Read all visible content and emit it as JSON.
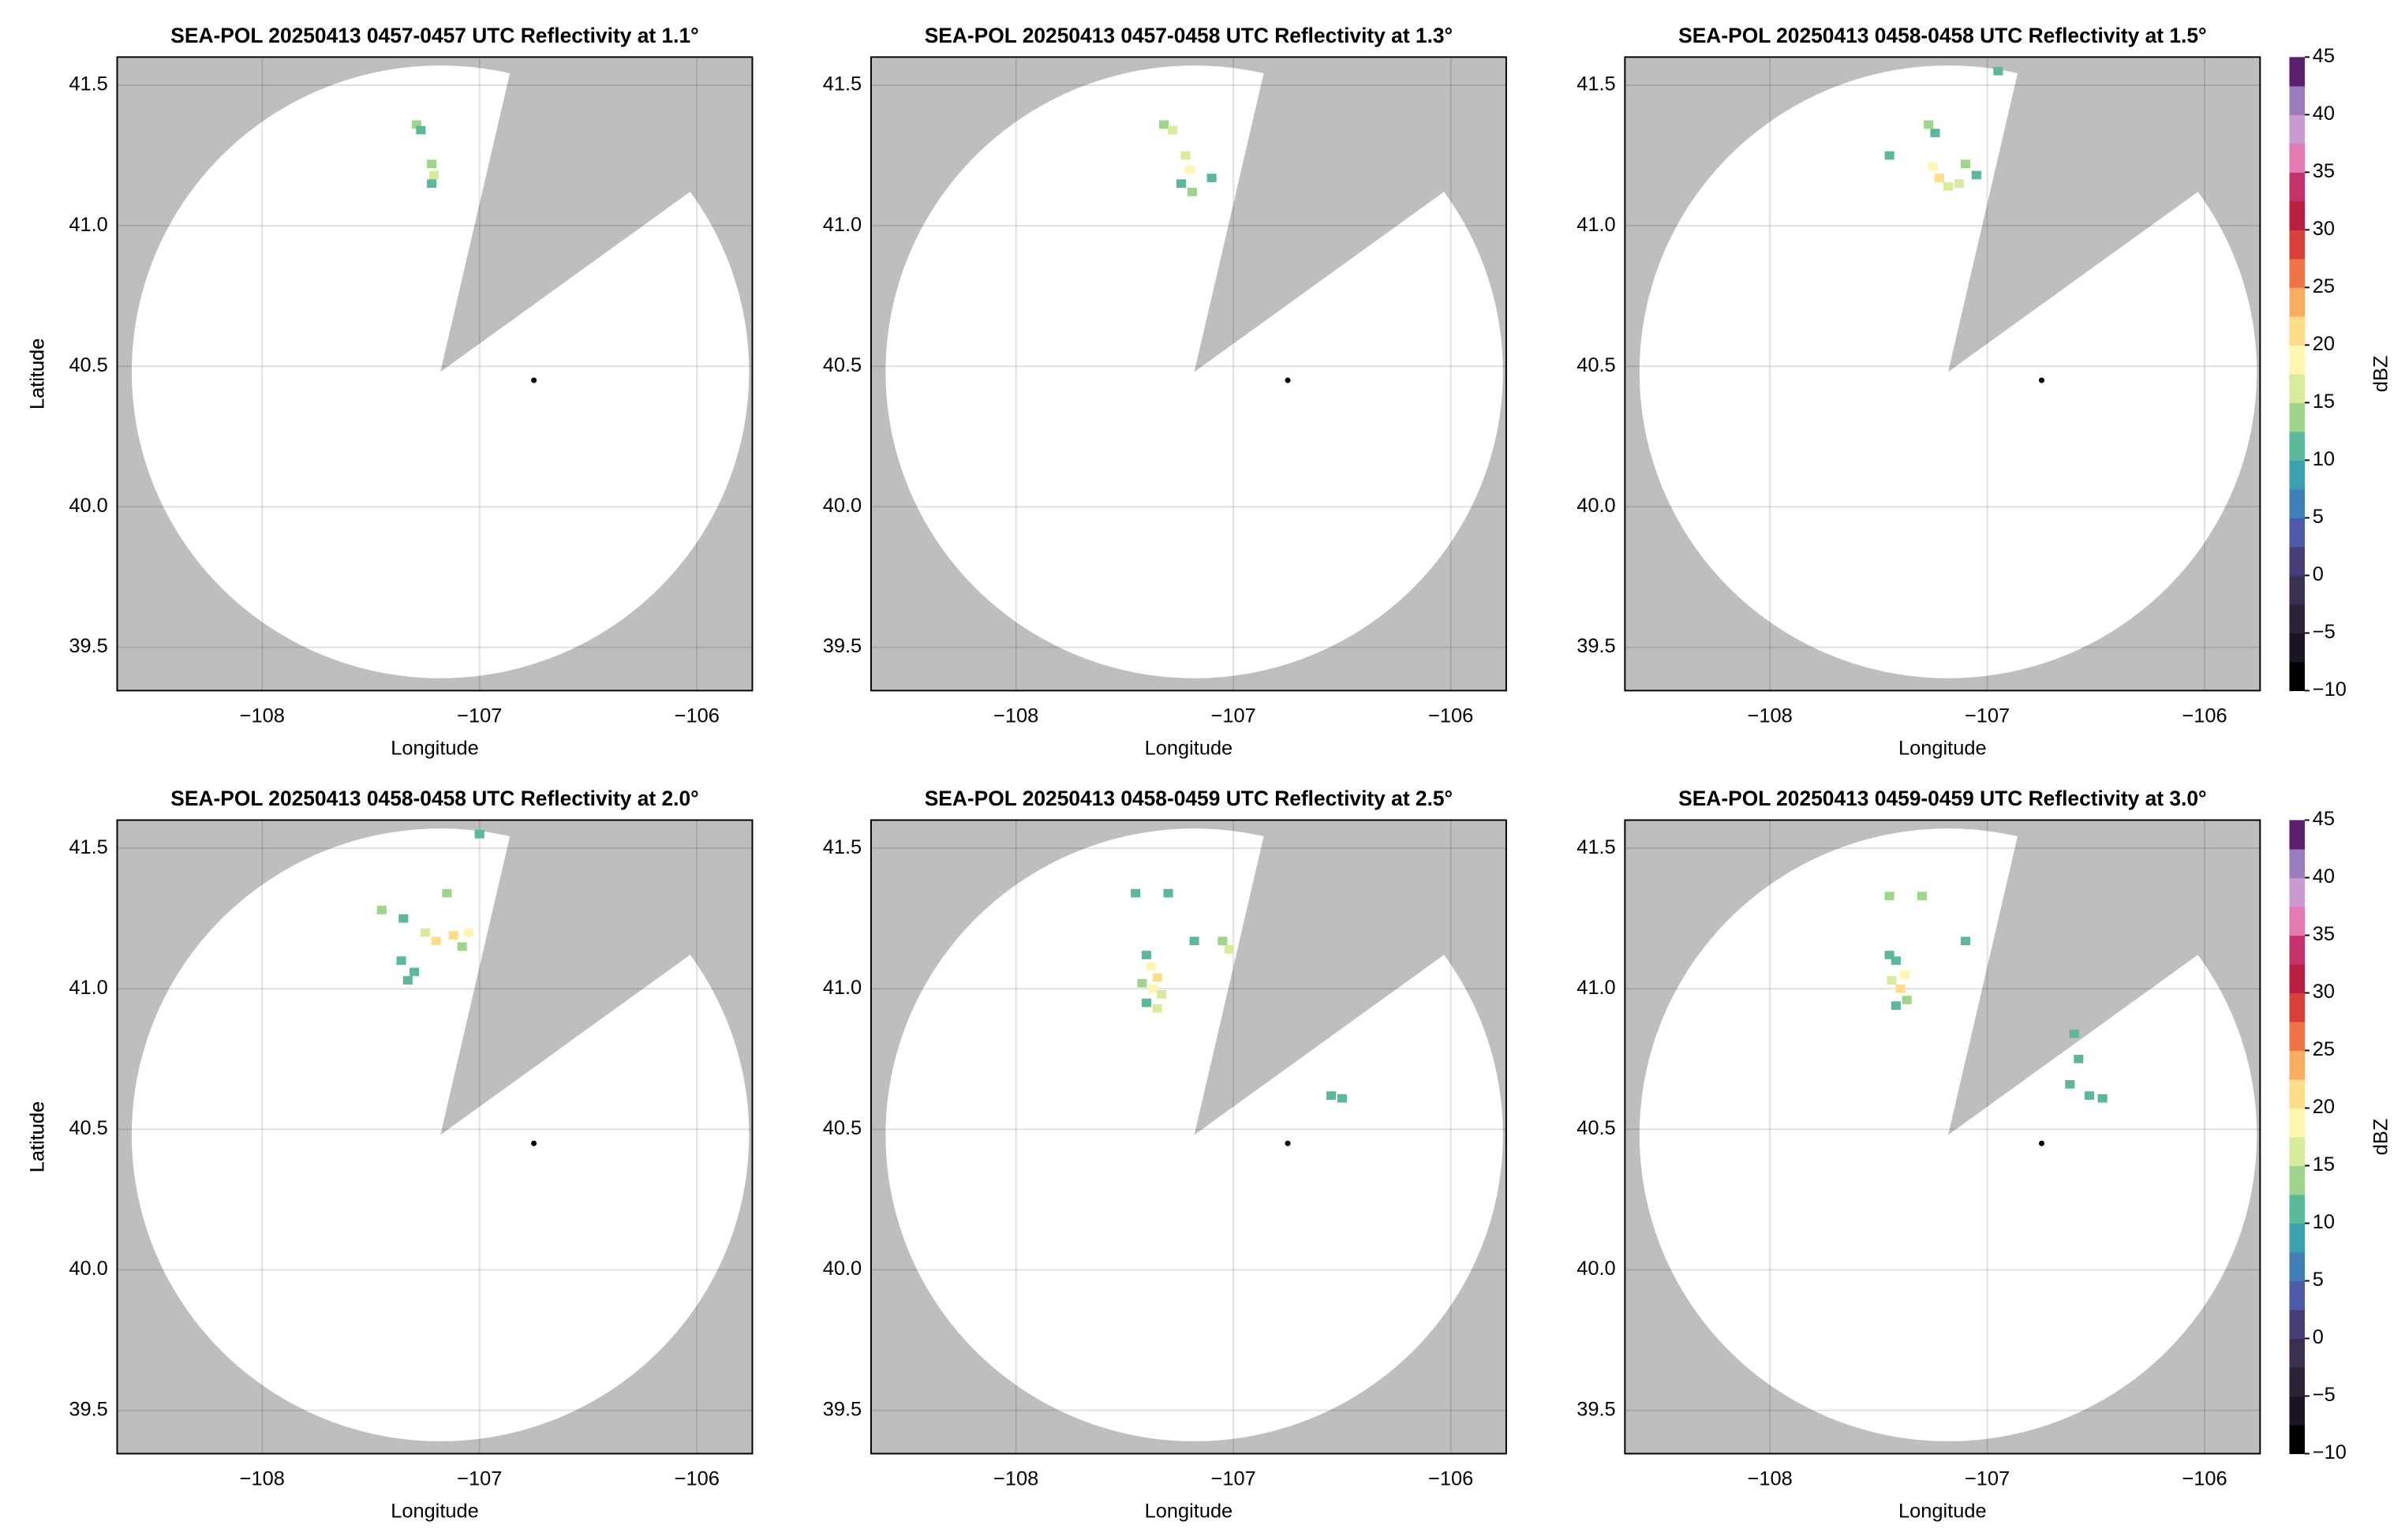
{
  "colormap": {
    "lim": [
      -10,
      45
    ],
    "colors": [
      "#000000",
      "#1a1520",
      "#2a2235",
      "#3a3050",
      "#473d78",
      "#4d5aa8",
      "#3f7fb5",
      "#3a9fae",
      "#5bb89a",
      "#9fd48c",
      "#d7eb9a",
      "#fcf6b0",
      "#fddc8a",
      "#f9ad60",
      "#ef7548",
      "#d9403a",
      "#b81e3e",
      "#c5326b",
      "#e07ab0",
      "#c89ad0",
      "#9a7bbd",
      "#5a1f6e"
    ]
  },
  "chart_data": [
    {
      "type": "radar",
      "title": "SEA-POL 20250413 0457-0457 UTC Reflectivity at 1.1°",
      "x_label": "Longitude",
      "y_label": "Latitude",
      "xlim": [
        -108.667,
        -105.745
      ],
      "ylim": [
        39.346,
        41.6
      ],
      "xticks": [
        {
          "value": -108,
          "label": "−108"
        },
        {
          "value": -107,
          "label": "−107"
        },
        {
          "value": -106,
          "label": "−106"
        }
      ],
      "yticks": [
        39.5,
        {
          "value": 40,
          "label": "40.0"
        },
        40.5,
        {
          "value": 41,
          "label": "41.0"
        },
        41.5
      ],
      "grid": true,
      "coverage": {
        "center": [
          -107.18,
          40.48
        ],
        "radius_deg": [
          1.42,
          1.09
        ],
        "blocked_azimuth": [
          13,
          54
        ]
      },
      "site": {
        "x": -106.75,
        "y": 40.45
      },
      "echoes": {
        "x": [
          -107.29,
          -107.27,
          -107.22,
          -107.21,
          -107.22
        ],
        "y": [
          41.36,
          41.34,
          41.22,
          41.18,
          41.15
        ],
        "values": [
          14,
          12,
          13,
          16,
          11
        ]
      }
    },
    {
      "type": "radar",
      "title": "SEA-POL 20250413 0457-0458 UTC Reflectivity at 1.3°",
      "x_label": "Longitude",
      "y_label": "Latitude",
      "xlim": [
        -108.667,
        -105.745
      ],
      "ylim": [
        39.346,
        41.6
      ],
      "xticks": [
        {
          "value": -108,
          "label": "−108"
        },
        {
          "value": -107,
          "label": "−107"
        },
        {
          "value": -106,
          "label": "−106"
        }
      ],
      "yticks": [
        39.5,
        {
          "value": 40,
          "label": "40.0"
        },
        40.5,
        {
          "value": 41,
          "label": "41.0"
        },
        41.5
      ],
      "grid": true,
      "coverage": {
        "center": [
          -107.18,
          40.48
        ],
        "radius_deg": [
          1.42,
          1.09
        ],
        "blocked_azimuth": [
          13,
          54
        ]
      },
      "site": {
        "x": -106.75,
        "y": 40.45
      },
      "echoes": {
        "x": [
          -107.32,
          -107.28,
          -107.22,
          -107.2,
          -107.24,
          -107.19,
          -107.1
        ],
        "y": [
          41.36,
          41.34,
          41.25,
          41.2,
          41.15,
          41.12,
          41.17
        ],
        "values": [
          13,
          15,
          16,
          18,
          12,
          14,
          11
        ]
      }
    },
    {
      "type": "radar",
      "title": "SEA-POL 20250413 0458-0458 UTC Reflectivity at 1.5°",
      "x_label": "Longitude",
      "y_label": "Latitude",
      "xlim": [
        -108.667,
        -105.745
      ],
      "ylim": [
        39.346,
        41.6
      ],
      "xticks": [
        {
          "value": -108,
          "label": "−108"
        },
        {
          "value": -107,
          "label": "−107"
        },
        {
          "value": -106,
          "label": "−106"
        }
      ],
      "yticks": [
        39.5,
        {
          "value": 40,
          "label": "40.0"
        },
        40.5,
        {
          "value": 41,
          "label": "41.0"
        },
        41.5
      ],
      "grid": true,
      "coverage": {
        "center": [
          -107.18,
          40.48
        ],
        "radius_deg": [
          1.42,
          1.09
        ],
        "blocked_azimuth": [
          13,
          54
        ]
      },
      "site": {
        "x": -106.75,
        "y": 40.45
      },
      "echoes": {
        "x": [
          -107.27,
          -107.24,
          -107.45,
          -107.25,
          -107.22,
          -107.18,
          -107.13,
          -107.1,
          -107.05,
          -106.95
        ],
        "y": [
          41.36,
          41.33,
          41.25,
          41.21,
          41.17,
          41.14,
          41.15,
          41.22,
          41.18,
          41.55
        ],
        "values": [
          14,
          12,
          11,
          18,
          20,
          16,
          15,
          13,
          12,
          12
        ]
      },
      "colorbar": {
        "label": "dBZ",
        "ticks": [
          {
            "value": -10,
            "label": "−10"
          },
          {
            "value": -5,
            "label": "−5"
          },
          0,
          5,
          10,
          15,
          20,
          25,
          30,
          35,
          40,
          45
        ]
      }
    },
    {
      "type": "radar",
      "title": "SEA-POL 20250413 0458-0458 UTC Reflectivity at 2.0°",
      "x_label": "Longitude",
      "y_label": "Latitude",
      "xlim": [
        -108.667,
        -105.745
      ],
      "ylim": [
        39.346,
        41.6
      ],
      "xticks": [
        {
          "value": -108,
          "label": "−108"
        },
        {
          "value": -107,
          "label": "−107"
        },
        {
          "value": -106,
          "label": "−106"
        }
      ],
      "yticks": [
        39.5,
        {
          "value": 40,
          "label": "40.0"
        },
        40.5,
        {
          "value": 41,
          "label": "41.0"
        },
        41.5
      ],
      "grid": true,
      "coverage": {
        "center": [
          -107.18,
          40.48
        ],
        "radius_deg": [
          1.42,
          1.09
        ],
        "blocked_azimuth": [
          13,
          54
        ]
      },
      "site": {
        "x": -106.75,
        "y": 40.45
      },
      "echoes": {
        "x": [
          -107.45,
          -107.35,
          -107.25,
          -107.2,
          -107.12,
          -107.05,
          -107.08,
          -107.36,
          -107.33,
          -107.3,
          -107.0,
          -107.15
        ],
        "y": [
          41.28,
          41.25,
          41.2,
          41.17,
          41.19,
          41.2,
          41.15,
          41.1,
          41.03,
          41.06,
          41.55,
          41.34
        ],
        "values": [
          13,
          12,
          16,
          20,
          22,
          18,
          14,
          11,
          10,
          12,
          12,
          13
        ]
      }
    },
    {
      "type": "radar",
      "title": "SEA-POL 20250413 0458-0459 UTC Reflectivity at 2.5°",
      "x_label": "Longitude",
      "y_label": "Latitude",
      "xlim": [
        -108.667,
        -105.745
      ],
      "ylim": [
        39.346,
        41.6
      ],
      "xticks": [
        {
          "value": -108,
          "label": "−108"
        },
        {
          "value": -107,
          "label": "−107"
        },
        {
          "value": -106,
          "label": "−106"
        }
      ],
      "yticks": [
        39.5,
        {
          "value": 40,
          "label": "40.0"
        },
        40.5,
        {
          "value": 41,
          "label": "41.0"
        },
        41.5
      ],
      "grid": true,
      "coverage": {
        "center": [
          -107.18,
          40.48
        ],
        "radius_deg": [
          1.42,
          1.09
        ],
        "blocked_azimuth": [
          13,
          54
        ]
      },
      "site": {
        "x": -106.75,
        "y": 40.45
      },
      "echoes": {
        "x": [
          -107.4,
          -107.38,
          -107.35,
          -107.42,
          -107.37,
          -107.33,
          -107.4,
          -107.35,
          -107.05,
          -107.02,
          -107.18,
          -107.45,
          -106.55,
          -106.5,
          -107.3
        ],
        "y": [
          41.12,
          41.08,
          41.04,
          41.02,
          41.0,
          40.98,
          40.95,
          40.93,
          41.17,
          41.14,
          41.17,
          41.34,
          40.62,
          40.61,
          41.34
        ],
        "values": [
          12,
          18,
          21,
          14,
          19,
          16,
          11,
          15,
          13,
          17,
          10,
          12,
          10,
          11,
          12
        ]
      }
    },
    {
      "type": "radar",
      "title": "SEA-POL 20250413 0459-0459 UTC Reflectivity at 3.0°",
      "x_label": "Longitude",
      "y_label": "Latitude",
      "xlim": [
        -108.667,
        -105.745
      ],
      "ylim": [
        39.346,
        41.6
      ],
      "xticks": [
        {
          "value": -108,
          "label": "−108"
        },
        {
          "value": -107,
          "label": "−107"
        },
        {
          "value": -106,
          "label": "−106"
        }
      ],
      "yticks": [
        39.5,
        {
          "value": 40,
          "label": "40.0"
        },
        40.5,
        {
          "value": 41,
          "label": "41.0"
        },
        41.5
      ],
      "grid": true,
      "coverage": {
        "center": [
          -107.18,
          40.48
        ],
        "radius_deg": [
          1.42,
          1.09
        ],
        "blocked_azimuth": [
          13,
          54
        ]
      },
      "site": {
        "x": -106.75,
        "y": 40.45
      },
      "echoes": {
        "x": [
          -107.45,
          -107.42,
          -107.38,
          -107.44,
          -107.4,
          -107.37,
          -107.42,
          -107.45,
          -107.3,
          -107.1,
          -106.6,
          -106.53,
          -106.47,
          -106.62,
          -106.58
        ],
        "y": [
          41.33,
          41.1,
          41.05,
          41.03,
          41.0,
          40.96,
          40.94,
          41.12,
          41.33,
          41.17,
          40.84,
          40.62,
          40.61,
          40.66,
          40.75
        ],
        "values": [
          14,
          12,
          18,
          15,
          20,
          13,
          11,
          10,
          13,
          12,
          10,
          11,
          12,
          10,
          11
        ]
      },
      "colorbar": {
        "label": "dBZ",
        "ticks": [
          {
            "value": -10,
            "label": "−10"
          },
          {
            "value": -5,
            "label": "−5"
          },
          0,
          5,
          10,
          15,
          20,
          25,
          30,
          35,
          40,
          45
        ]
      }
    }
  ]
}
